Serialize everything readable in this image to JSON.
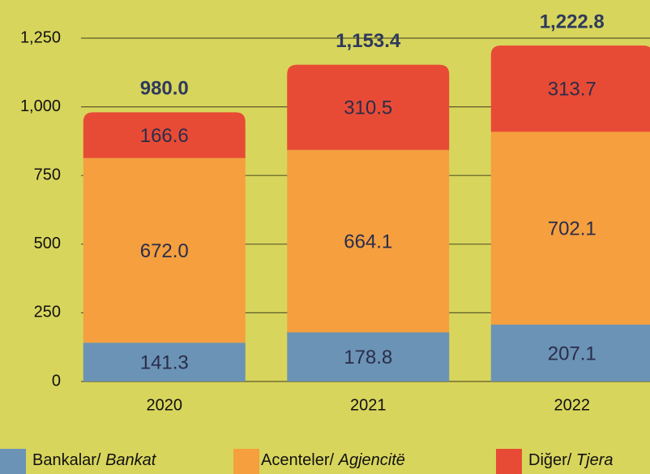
{
  "chart_data": {
    "type": "stacked_bar",
    "categories": [
      "2020",
      "2021",
      "2022"
    ],
    "series": [
      {
        "name": "Bankalar/ Bankat",
        "color": "#6b93b6",
        "values": [
          141.3,
          178.8,
          207.1
        ],
        "value_labels": [
          "141.3",
          "178.8",
          "207.1"
        ]
      },
      {
        "name": "Acenteler/ Agjencitë",
        "color": "#f59f3f",
        "values": [
          672.0,
          664.1,
          702.1
        ],
        "value_labels": [
          "672.0",
          "664.1",
          "702.1"
        ]
      },
      {
        "name": "Diğer/ Tjera",
        "color": "#e84b35",
        "values": [
          166.6,
          310.5,
          313.7
        ],
        "value_labels": [
          "166.6",
          "310.5",
          "313.7"
        ]
      }
    ],
    "totals": {
      "values": [
        980.0,
        1153.4,
        1222.8
      ],
      "value_labels": [
        "980.0",
        "1,153.4",
        "1,222.8"
      ]
    },
    "ylim": [
      0,
      1250
    ],
    "yticks": [
      0,
      250,
      500,
      750,
      {
        "value": 1000,
        "label": "1,000"
      },
      {
        "value": 1250,
        "label": "1,250"
      }
    ],
    "grid": true
  }
}
